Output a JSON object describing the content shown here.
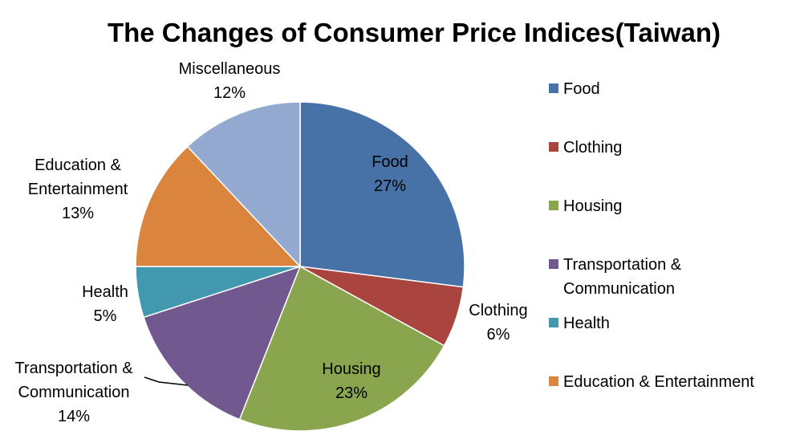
{
  "chart_data": {
    "type": "pie",
    "title": "The Changes of Consumer Price Indices(Taiwan)",
    "slices": [
      {
        "name": "Food",
        "label_lines": [
          "Food"
        ],
        "percent_label": "27%",
        "value": 27,
        "color": "#4672A8"
      },
      {
        "name": "Clothing",
        "label_lines": [
          "Clothing"
        ],
        "percent_label": "6%",
        "value": 6,
        "color": "#A9443F"
      },
      {
        "name": "Housing",
        "label_lines": [
          "Housing"
        ],
        "percent_label": "23%",
        "value": 23,
        "color": "#89A54E"
      },
      {
        "name": "Transportation & Communication",
        "label_lines": [
          "Transportation &",
          "Communication"
        ],
        "percent_label": "14%",
        "value": 14,
        "color": "#71588F"
      },
      {
        "name": "Health",
        "label_lines": [
          "Health"
        ],
        "percent_label": "5%",
        "value": 5,
        "color": "#4198AF"
      },
      {
        "name": "Education & Entertainment",
        "label_lines": [
          "Education &",
          "Entertainment"
        ],
        "percent_label": "13%",
        "value": 13,
        "color": "#DB843D"
      },
      {
        "name": "Miscellaneous",
        "label_lines": [
          "Miscellaneous"
        ],
        "percent_label": "12%",
        "value": 12,
        "color": "#93A9CF"
      }
    ],
    "legend": [
      {
        "label": "Food",
        "color": "#4672A8"
      },
      {
        "label": "Clothing",
        "color": "#A9443F"
      },
      {
        "label": "Housing",
        "color": "#89A54E"
      },
      {
        "label": "Transportation & Communication",
        "color": "#71588F"
      },
      {
        "label": "Health",
        "color": "#4198AF"
      },
      {
        "label": "Education & Entertainment",
        "color": "#DB843D"
      }
    ],
    "legend_position": "right"
  }
}
